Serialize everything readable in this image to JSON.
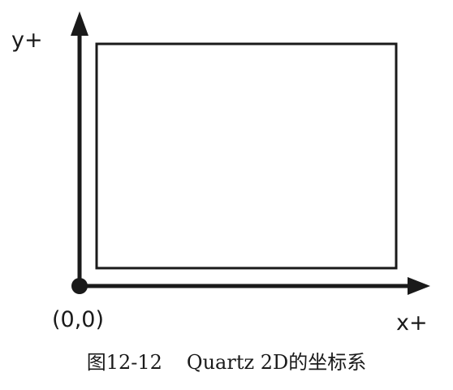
{
  "axes": {
    "y_label": "y+",
    "x_label": "x+",
    "origin_label": "(0,0)"
  },
  "caption": {
    "figure_number": "图12-12",
    "title": "Quartz 2D的坐标系"
  },
  "colors": {
    "ink": "#1a1a1a",
    "background": "#ffffff"
  }
}
